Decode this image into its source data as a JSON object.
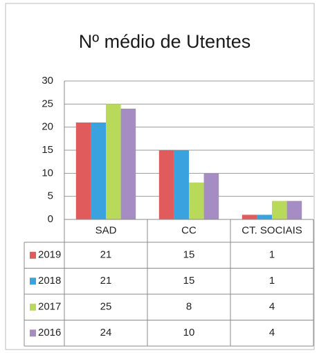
{
  "chart_data": {
    "type": "bar",
    "title": "Nº médio de Utentes",
    "categories": [
      "SAD",
      "CC",
      "CT. SOCIAIS"
    ],
    "series": [
      {
        "name": "2019",
        "color": "#e05c5c",
        "values": [
          21,
          15,
          1
        ]
      },
      {
        "name": "2018",
        "color": "#3aa2de",
        "values": [
          21,
          15,
          1
        ]
      },
      {
        "name": "2017",
        "color": "#b8d95a",
        "values": [
          25,
          8,
          4
        ]
      },
      {
        "name": "2016",
        "color": "#a58cc2",
        "values": [
          24,
          10,
          4
        ]
      }
    ],
    "ylim": [
      0,
      30
    ],
    "yticks": [
      0,
      5,
      10,
      15,
      20,
      25,
      30
    ],
    "grid": true,
    "data_table": true
  }
}
